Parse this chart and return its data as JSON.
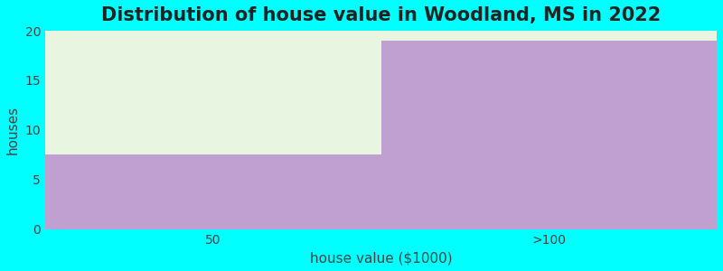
{
  "title": "Distribution of house value in Woodland, MS in 2022",
  "xlabel": "house value ($1000)",
  "ylabel": "houses",
  "categories": [
    "50",
    ">100"
  ],
  "values": [
    7.5,
    19
  ],
  "max_value": 20,
  "bar_color": "#c0a0d0",
  "fill_color": "#e8f5e0",
  "background_color": "#00ffff",
  "ylim": [
    0,
    20
  ],
  "yticks": [
    0,
    5,
    10,
    15,
    20
  ],
  "title_fontsize": 15,
  "axis_label_fontsize": 11,
  "tick_fontsize": 10,
  "grid_color": "#e0d0e8",
  "bin_edges": [
    0,
    1,
    2
  ]
}
